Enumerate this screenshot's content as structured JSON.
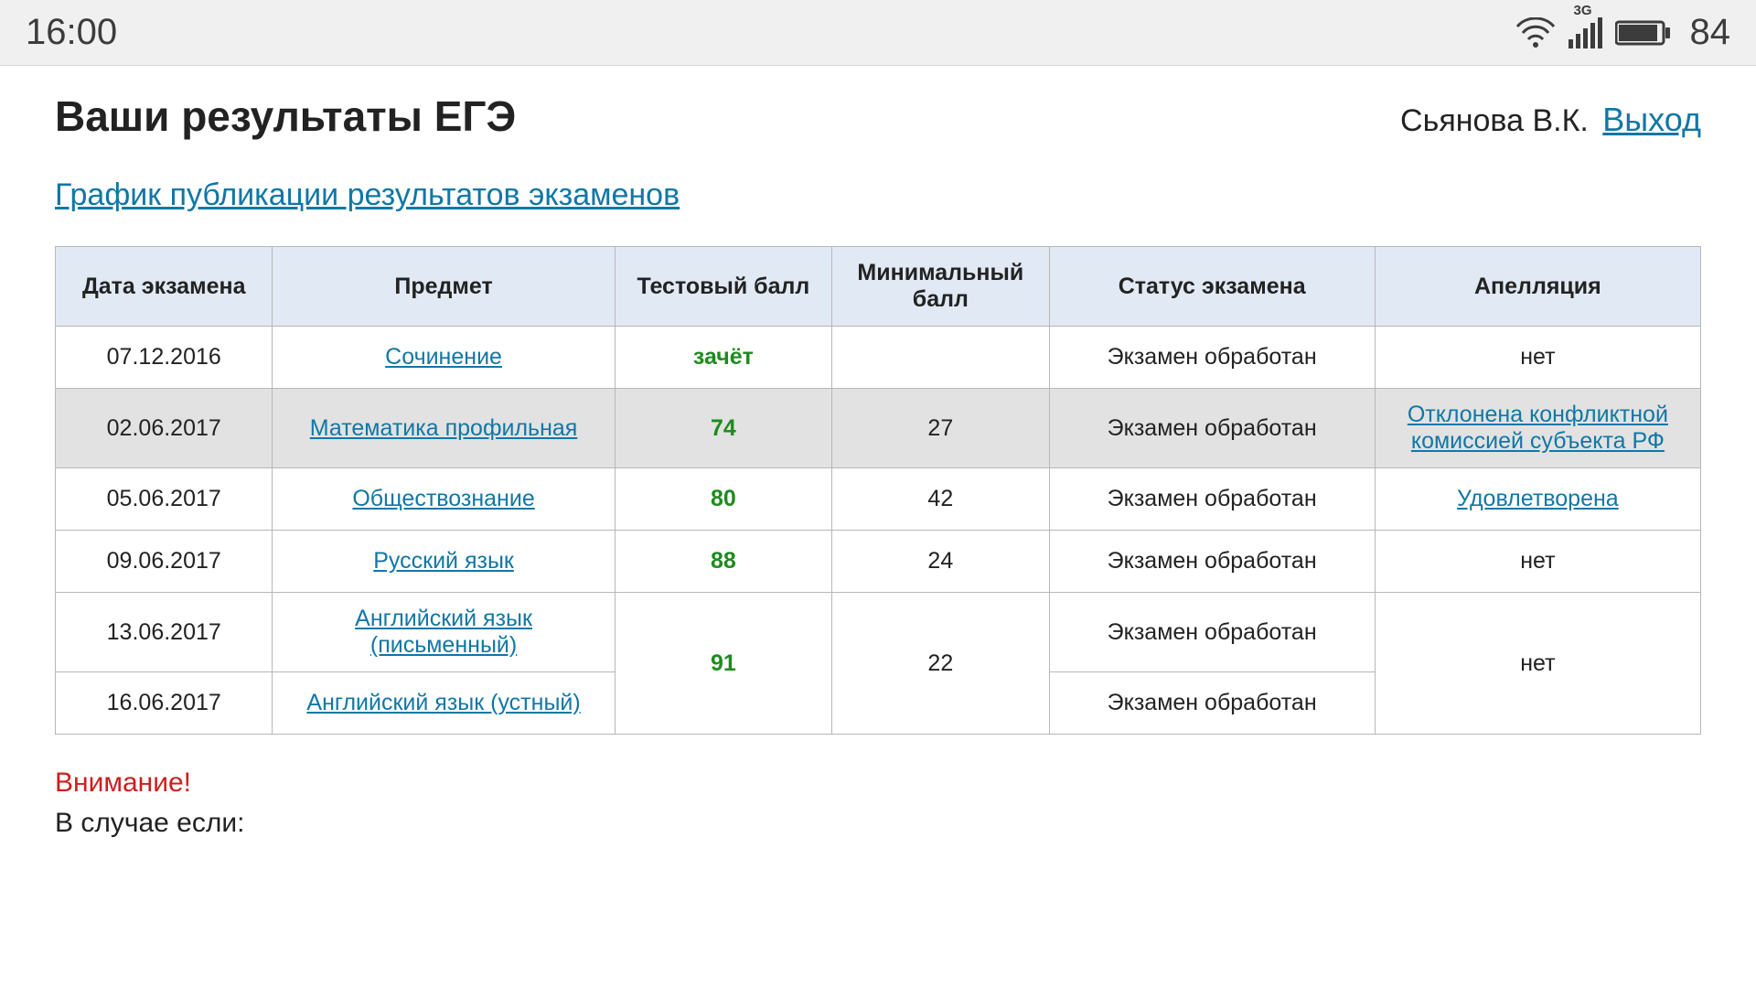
{
  "statusbar": {
    "time": "16:00",
    "network_label": "3G",
    "battery": "84"
  },
  "header": {
    "title": "Ваши результаты ЕГЭ",
    "user": "Сьянова В.К.",
    "logout": "Выход"
  },
  "schedule_link": "График публикации результатов экзаменов",
  "table": {
    "columns": [
      "Дата экзамена",
      "Предмет",
      "Тестовый балл",
      "Минимальный балл",
      "Статус экзамена",
      "Апелляция"
    ]
  },
  "rows": [
    {
      "date": "07.12.2016",
      "subject": "Сочинение",
      "score": "зачёт",
      "min": "",
      "status": "Экзамен обработан",
      "appeal": "нет",
      "appeal_link": false,
      "shaded": false
    },
    {
      "date": "02.06.2017",
      "subject": "Математика профильная",
      "score": "74",
      "min": "27",
      "status": "Экзамен обработан",
      "appeal": "Отклонена конфликтной комиссией субъекта РФ",
      "appeal_link": true,
      "shaded": true
    },
    {
      "date": "05.06.2017",
      "subject": "Обществознание",
      "score": "80",
      "min": "42",
      "status": "Экзамен обработан",
      "appeal": "Удовлетворена",
      "appeal_link": true,
      "shaded": false
    },
    {
      "date": "09.06.2017",
      "subject": "Русский язык",
      "score": "88",
      "min": "24",
      "status": "Экзамен обработан",
      "appeal": "нет",
      "appeal_link": false,
      "shaded": false
    },
    {
      "date": "13.06.2017",
      "subject": "Английский язык (письменный)",
      "score": "91",
      "min": "22",
      "status": "Экзамен обработан",
      "appeal": "нет",
      "appeal_link": false,
      "shaded": false,
      "merge_start": true
    },
    {
      "date": "16.06.2017",
      "subject": "Английский язык (устный)",
      "status": "Экзамен обработан",
      "shaded": false,
      "merge_continue": true
    }
  ],
  "footer": {
    "warning": "Внимание!",
    "line2": "В случае если:"
  },
  "colors": {
    "link": "#1077a5",
    "score_green": "#1e8b1e",
    "header_bg": "#e1e9f4",
    "shaded_bg": "#e2e2e2",
    "border": "#b7b7b7",
    "warning": "#d01d1d"
  }
}
